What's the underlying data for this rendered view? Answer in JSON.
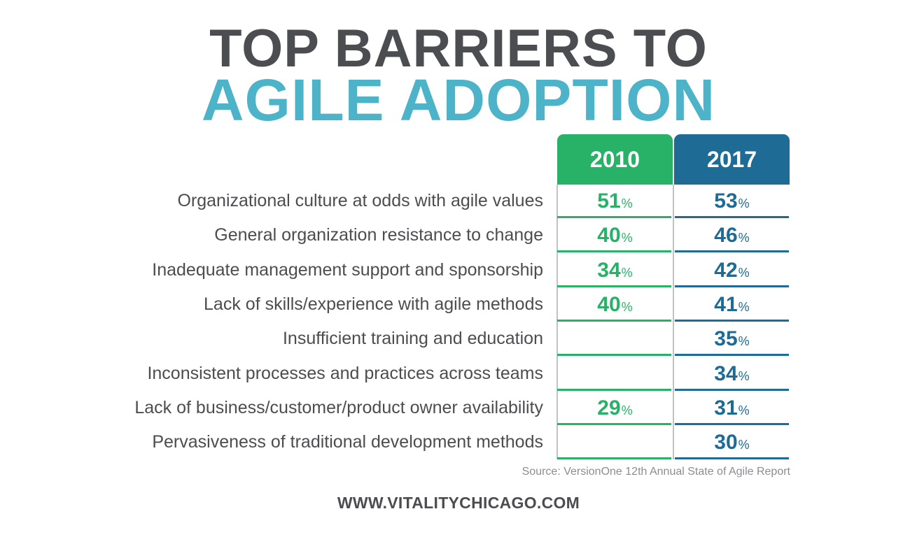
{
  "title": {
    "line1": "TOP BARRIERS TO",
    "line2": "AGILE ADOPTION"
  },
  "colors": {
    "title_dark": "#4b4d51",
    "title_accent": "#4db3c9",
    "series_2010": "#27b267",
    "series_2017": "#1e6b96"
  },
  "chart_data": {
    "type": "table",
    "title": "TOP BARRIERS TO AGILE ADOPTION",
    "columns": [
      "2010",
      "2017"
    ],
    "unit": "%",
    "rows": [
      {
        "label": "Organizational culture at odds with agile values",
        "v2010": "51",
        "v2017": "53"
      },
      {
        "label": "General organization resistance to change",
        "v2010": "40",
        "v2017": "46"
      },
      {
        "label": "Inadequate management support and  sponsorship",
        "v2010": "34",
        "v2017": "42"
      },
      {
        "label": "Lack of skills/experience with agile methods",
        "v2010": "40",
        "v2017": "41"
      },
      {
        "label": "Insufficient training and  education",
        "v2010": null,
        "v2017": "35"
      },
      {
        "label": "Inconsistent processes and practices across teams",
        "v2010": null,
        "v2017": "34"
      },
      {
        "label": "Lack of business/customer/product owner availability",
        "v2010": "29",
        "v2017": "31"
      },
      {
        "label": "Pervasiveness of traditional development methods",
        "v2010": null,
        "v2017": "30"
      }
    ]
  },
  "source": "Source: VersionOne 12th Annual State of Agile Report",
  "footer": "WWW.VITALITYCHICAGO.COM"
}
